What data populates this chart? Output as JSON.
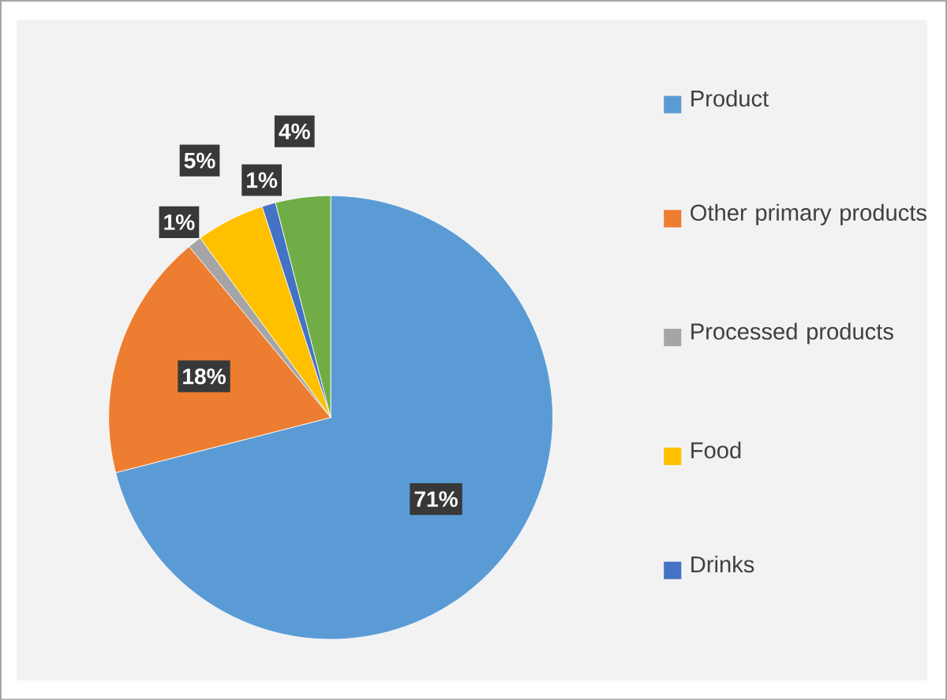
{
  "chart_data": {
    "type": "pie",
    "categories": [
      "Product",
      "Other primary products",
      "Processed products",
      "Food",
      "Drinks",
      null
    ],
    "values": [
      71,
      18,
      1,
      5,
      1,
      4
    ],
    "colors": [
      "#5b9bd5",
      "#ed7d31",
      "#a5a5a5",
      "#ffc000",
      "#4472c4",
      "#70ad47"
    ],
    "value_labels": [
      "71%",
      "18%",
      "1%",
      "5%",
      "1%",
      "4%"
    ],
    "legend": "right"
  }
}
